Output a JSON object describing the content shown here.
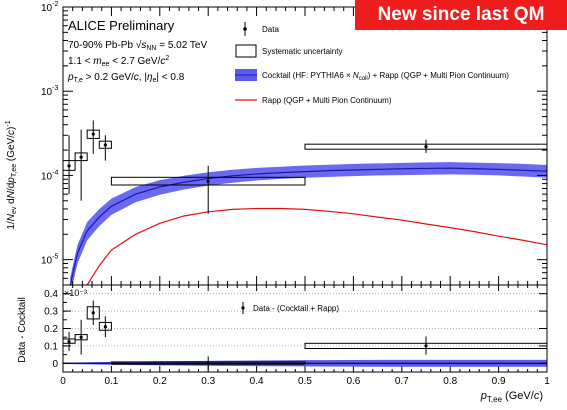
{
  "banner": "New since last QM",
  "chart_data": [
    {
      "type": "line",
      "panel": "upper",
      "ylabel": "1/N_ev dN/dp_T,ee (GeV/c)^-1",
      "xlim": [
        0,
        1
      ],
      "ylim": [
        5e-06,
        0.01
      ],
      "yscale": "log",
      "x_ticks": [
        "0",
        "0.1",
        "0.2",
        "0.3",
        "0.4",
        "0.5",
        "0.6",
        "0.7",
        "0.8",
        "0.9",
        "1"
      ],
      "y_tick_labels": [
        {
          "base": "10",
          "exp": "-5",
          "value": 1e-05
        },
        {
          "base": "10",
          "exp": "-4",
          "value": 0.0001
        },
        {
          "base": "10",
          "exp": "-3",
          "value": 0.001
        },
        {
          "base": "10",
          "exp": "-2",
          "value": 0.01
        }
      ],
      "annotations": {
        "title": "ALICE Preliminary",
        "system": "70-90% Pb-Pb √s_NN = 5.02 TeV",
        "mass_cut": "1.1 < m_ee < 2.7 GeV/c²",
        "pt_cut": "p_T,e > 0.2 GeV/c, |η_e| < 0.8"
      },
      "legend": {
        "placement": "top-right",
        "entries": [
          {
            "label": "Data",
            "marker": "point-with-error"
          },
          {
            "label": "Systematic uncertainty",
            "marker": "open-box"
          },
          {
            "label": "Cocktail (HF: PYTHIA6 × N_coll) + Rapp (QGP + Multi Pion Continuum)",
            "marker": "blue-band"
          },
          {
            "label": "Rapp (QGP + Multi Pion Continuum)",
            "marker": "red-line"
          }
        ]
      },
      "data": {
        "points": [
          {
            "x": 0.0125,
            "y": 0.00013,
            "ylo": 6e-05,
            "yhi": 0.0003,
            "sys_xw": 0.0125,
            "sys_ylo": 0.000115,
            "sys_yhi": 0.00015
          },
          {
            "x": 0.0375,
            "y": 0.000165,
            "ylo": 5e-05,
            "yhi": 0.00035,
            "sys_xw": 0.0125,
            "sys_ylo": 0.00015,
            "sys_yhi": 0.000185
          },
          {
            "x": 0.0625,
            "y": 0.00031,
            "ylo": 0.00018,
            "yhi": 0.00045,
            "sys_xw": 0.0125,
            "sys_ylo": 0.000275,
            "sys_yhi": 0.000345
          },
          {
            "x": 0.0875,
            "y": 0.00023,
            "ylo": 0.00015,
            "yhi": 0.0003,
            "sys_xw": 0.0125,
            "sys_ylo": 0.00021,
            "sys_yhi": 0.000255
          },
          {
            "x": 0.3,
            "y": 8.5e-05,
            "ylo": 3.5e-05,
            "yhi": 0.00013,
            "sys_xw": 0.2,
            "sys_ylo": 7.7e-05,
            "sys_yhi": 9.5e-05
          },
          {
            "x": 0.75,
            "y": 0.00022,
            "ylo": 0.000185,
            "yhi": 0.000265,
            "sys_xw": 0.25,
            "sys_ylo": 0.000205,
            "sys_yhi": 0.000235
          }
        ]
      },
      "series": [
        {
          "name": "Cocktail (HF: PYTHIA6 × N_coll) + Rapp (QGP + Multi Pion Continuum)",
          "color": "#1a1aa8",
          "band_color": "#5a5af0",
          "x": [
            0.015,
            0.03,
            0.05,
            0.075,
            0.1,
            0.15,
            0.2,
            0.25,
            0.3,
            0.35,
            0.4,
            0.45,
            0.5,
            0.55,
            0.6,
            0.65,
            0.7,
            0.75,
            0.8,
            0.85,
            0.9,
            0.95,
            1.0
          ],
          "y": [
            5e-06,
            1.2e-05,
            2.2e-05,
            3.2e-05,
            4.3e-05,
            6e-05,
            7.3e-05,
            8.3e-05,
            9.2e-05,
            9.9e-05,
            0.000104,
            0.000108,
            0.000111,
            0.000114,
            0.000116,
            0.000118,
            0.00012,
            0.000121,
            0.000122,
            0.00012,
            0.000118,
            0.000115,
            0.000112
          ],
          "band_lo": [
            3.8e-06,
            9e-06,
            1.7e-05,
            2.5e-05,
            3.4e-05,
            4.8e-05,
            5.9e-05,
            6.8e-05,
            7.6e-05,
            8.2e-05,
            8.7e-05,
            9.1e-05,
            9.4e-05,
            9.6e-05,
            9.8e-05,
            0.0001,
            0.000101,
            0.000102,
            0.000103,
            0.000102,
            0.0001,
            9.7e-05,
            9.4e-05
          ],
          "band_hi": [
            6.2e-06,
            1.5e-05,
            2.8e-05,
            4e-05,
            5.3e-05,
            7.3e-05,
            8.8e-05,
            9.9e-05,
            0.000109,
            0.000117,
            0.000123,
            0.000127,
            0.000131,
            0.000134,
            0.000137,
            0.000139,
            0.000141,
            0.000143,
            0.000144,
            0.000142,
            0.00014,
            0.000137,
            0.000133
          ]
        },
        {
          "name": "Rapp (QGP + Multi Pion Continuum)",
          "color": "#dd1111",
          "x": [
            0.05,
            0.075,
            0.1,
            0.15,
            0.2,
            0.25,
            0.3,
            0.35,
            0.4,
            0.45,
            0.5,
            0.55,
            0.6,
            0.65,
            0.7,
            0.75,
            0.8,
            0.85,
            0.9,
            0.95,
            1.0
          ],
          "y": [
            5e-06,
            8.5e-06,
            1.3e-05,
            2e-05,
            2.7e-05,
            3.3e-05,
            3.7e-05,
            3.95e-05,
            4.05e-05,
            4.05e-05,
            3.95e-05,
            3.75e-05,
            3.5e-05,
            3.2e-05,
            2.95e-05,
            2.65e-05,
            2.4e-05,
            2.15e-05,
            1.9e-05,
            1.7e-05,
            1.5e-05
          ]
        }
      ]
    },
    {
      "type": "scatter",
      "panel": "lower",
      "xlabel": "p_T,ee (GeV/c)",
      "ylabel": "Data - Cocktail",
      "y_multiplier": "×10⁻³",
      "xlim": [
        0,
        1
      ],
      "ylim": [
        -0.05,
        0.45
      ],
      "x_ticks": [
        "0",
        "0.1",
        "0.2",
        "0.3",
        "0.4",
        "0.5",
        "0.6",
        "0.7",
        "0.8",
        "0.9",
        "1"
      ],
      "y_ticks": [
        "0",
        "0.1",
        "0.2",
        "0.3",
        "0.4"
      ],
      "grid": "horizontal dotted",
      "legend": {
        "placement": "top-center",
        "entries": [
          {
            "label": "Data - (Cocktail + Rapp)",
            "marker": "point-with-error"
          }
        ]
      },
      "series": [
        {
          "name": "Data - (Cocktail + Rapp)",
          "points": [
            {
              "x": 0.0125,
              "y": 0.125,
              "ylo": 0.07,
              "yhi": 0.18,
              "sys_xw": 0.0125,
              "sys_ylo": 0.115,
              "sys_yhi": 0.14
            },
            {
              "x": 0.0375,
              "y": 0.15,
              "ylo": 0.05,
              "yhi": 0.25,
              "sys_xw": 0.0125,
              "sys_ylo": 0.135,
              "sys_yhi": 0.165
            },
            {
              "x": 0.0625,
              "y": 0.29,
              "ylo": 0.22,
              "yhi": 0.36,
              "sys_xw": 0.0125,
              "sys_ylo": 0.255,
              "sys_yhi": 0.325
            },
            {
              "x": 0.0875,
              "y": 0.21,
              "ylo": 0.15,
              "yhi": 0.27,
              "sys_xw": 0.0125,
              "sys_ylo": 0.19,
              "sys_yhi": 0.235
            },
            {
              "x": 0.3,
              "y": 0.0,
              "ylo": -0.04,
              "yhi": 0.04,
              "sys_xw": 0.2,
              "sys_ylo": -0.005,
              "sys_yhi": 0.008
            },
            {
              "x": 0.75,
              "y": 0.1,
              "ylo": 0.05,
              "yhi": 0.155,
              "sys_xw": 0.25,
              "sys_ylo": 0.085,
              "sys_yhi": 0.115
            }
          ]
        }
      ],
      "band": {
        "color": "#5a5af0",
        "x": [
          0.0,
          0.1,
          0.2,
          0.3,
          0.4,
          0.5,
          0.6,
          0.7,
          0.8,
          0.9,
          1.0
        ],
        "lo": [
          -0.004,
          -0.008,
          -0.012,
          -0.014,
          -0.016,
          -0.018,
          -0.019,
          -0.02,
          -0.02,
          -0.02,
          -0.02
        ],
        "hi": [
          0.004,
          0.008,
          0.012,
          0.014,
          0.016,
          0.018,
          0.019,
          0.02,
          0.02,
          0.02,
          0.02
        ]
      }
    }
  ]
}
